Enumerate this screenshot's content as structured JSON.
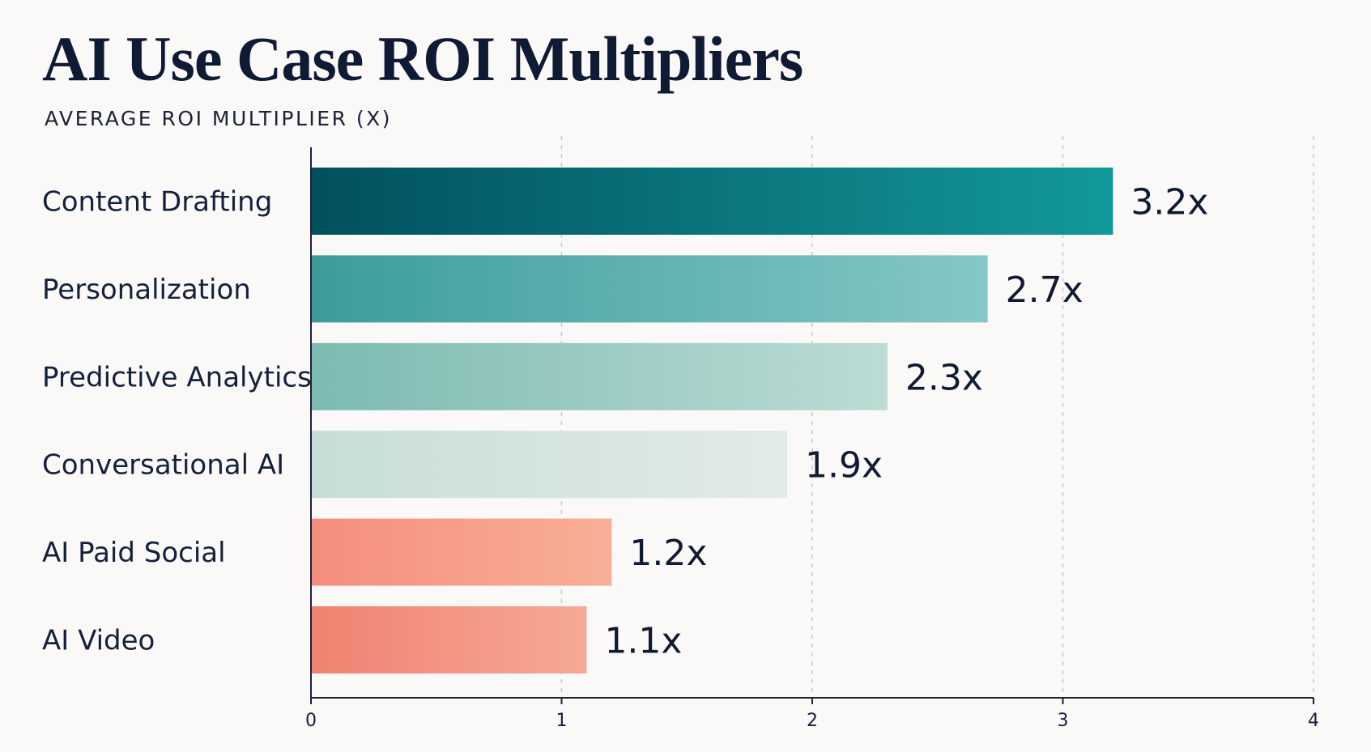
{
  "chart_data": {
    "type": "bar",
    "orientation": "horizontal",
    "title": "AI Use Case ROI Multipliers",
    "subtitle": "AVERAGE ROI MULTIPLIER (X)",
    "categories": [
      "Content Drafting",
      "Personalization",
      "Predictive Analytics",
      "Conversational AI",
      "AI Paid Social",
      "AI Video"
    ],
    "values": [
      3.2,
      2.7,
      2.3,
      1.9,
      1.2,
      1.1
    ],
    "value_labels": [
      "3.2x",
      "2.7x",
      "2.3x",
      "1.9x",
      "1.2x",
      "1.1x"
    ],
    "xlim": [
      0,
      4
    ],
    "xticks": [
      "0",
      "1",
      "2",
      "3",
      "4"
    ],
    "xlabel": "",
    "ylabel": "",
    "grid": "vertical dashed",
    "legend": "none",
    "bar_gradients": [
      [
        "#02505e",
        "#13999a"
      ],
      [
        "#3c9c9a",
        "#84c8c6"
      ],
      [
        "#7bbab2",
        "#bcdcd5"
      ],
      [
        "#c6ddd6",
        "#e3ebe6"
      ],
      [
        "#f48e7c",
        "#f8af97"
      ],
      [
        "#f18170",
        "#f6a996"
      ]
    ]
  }
}
